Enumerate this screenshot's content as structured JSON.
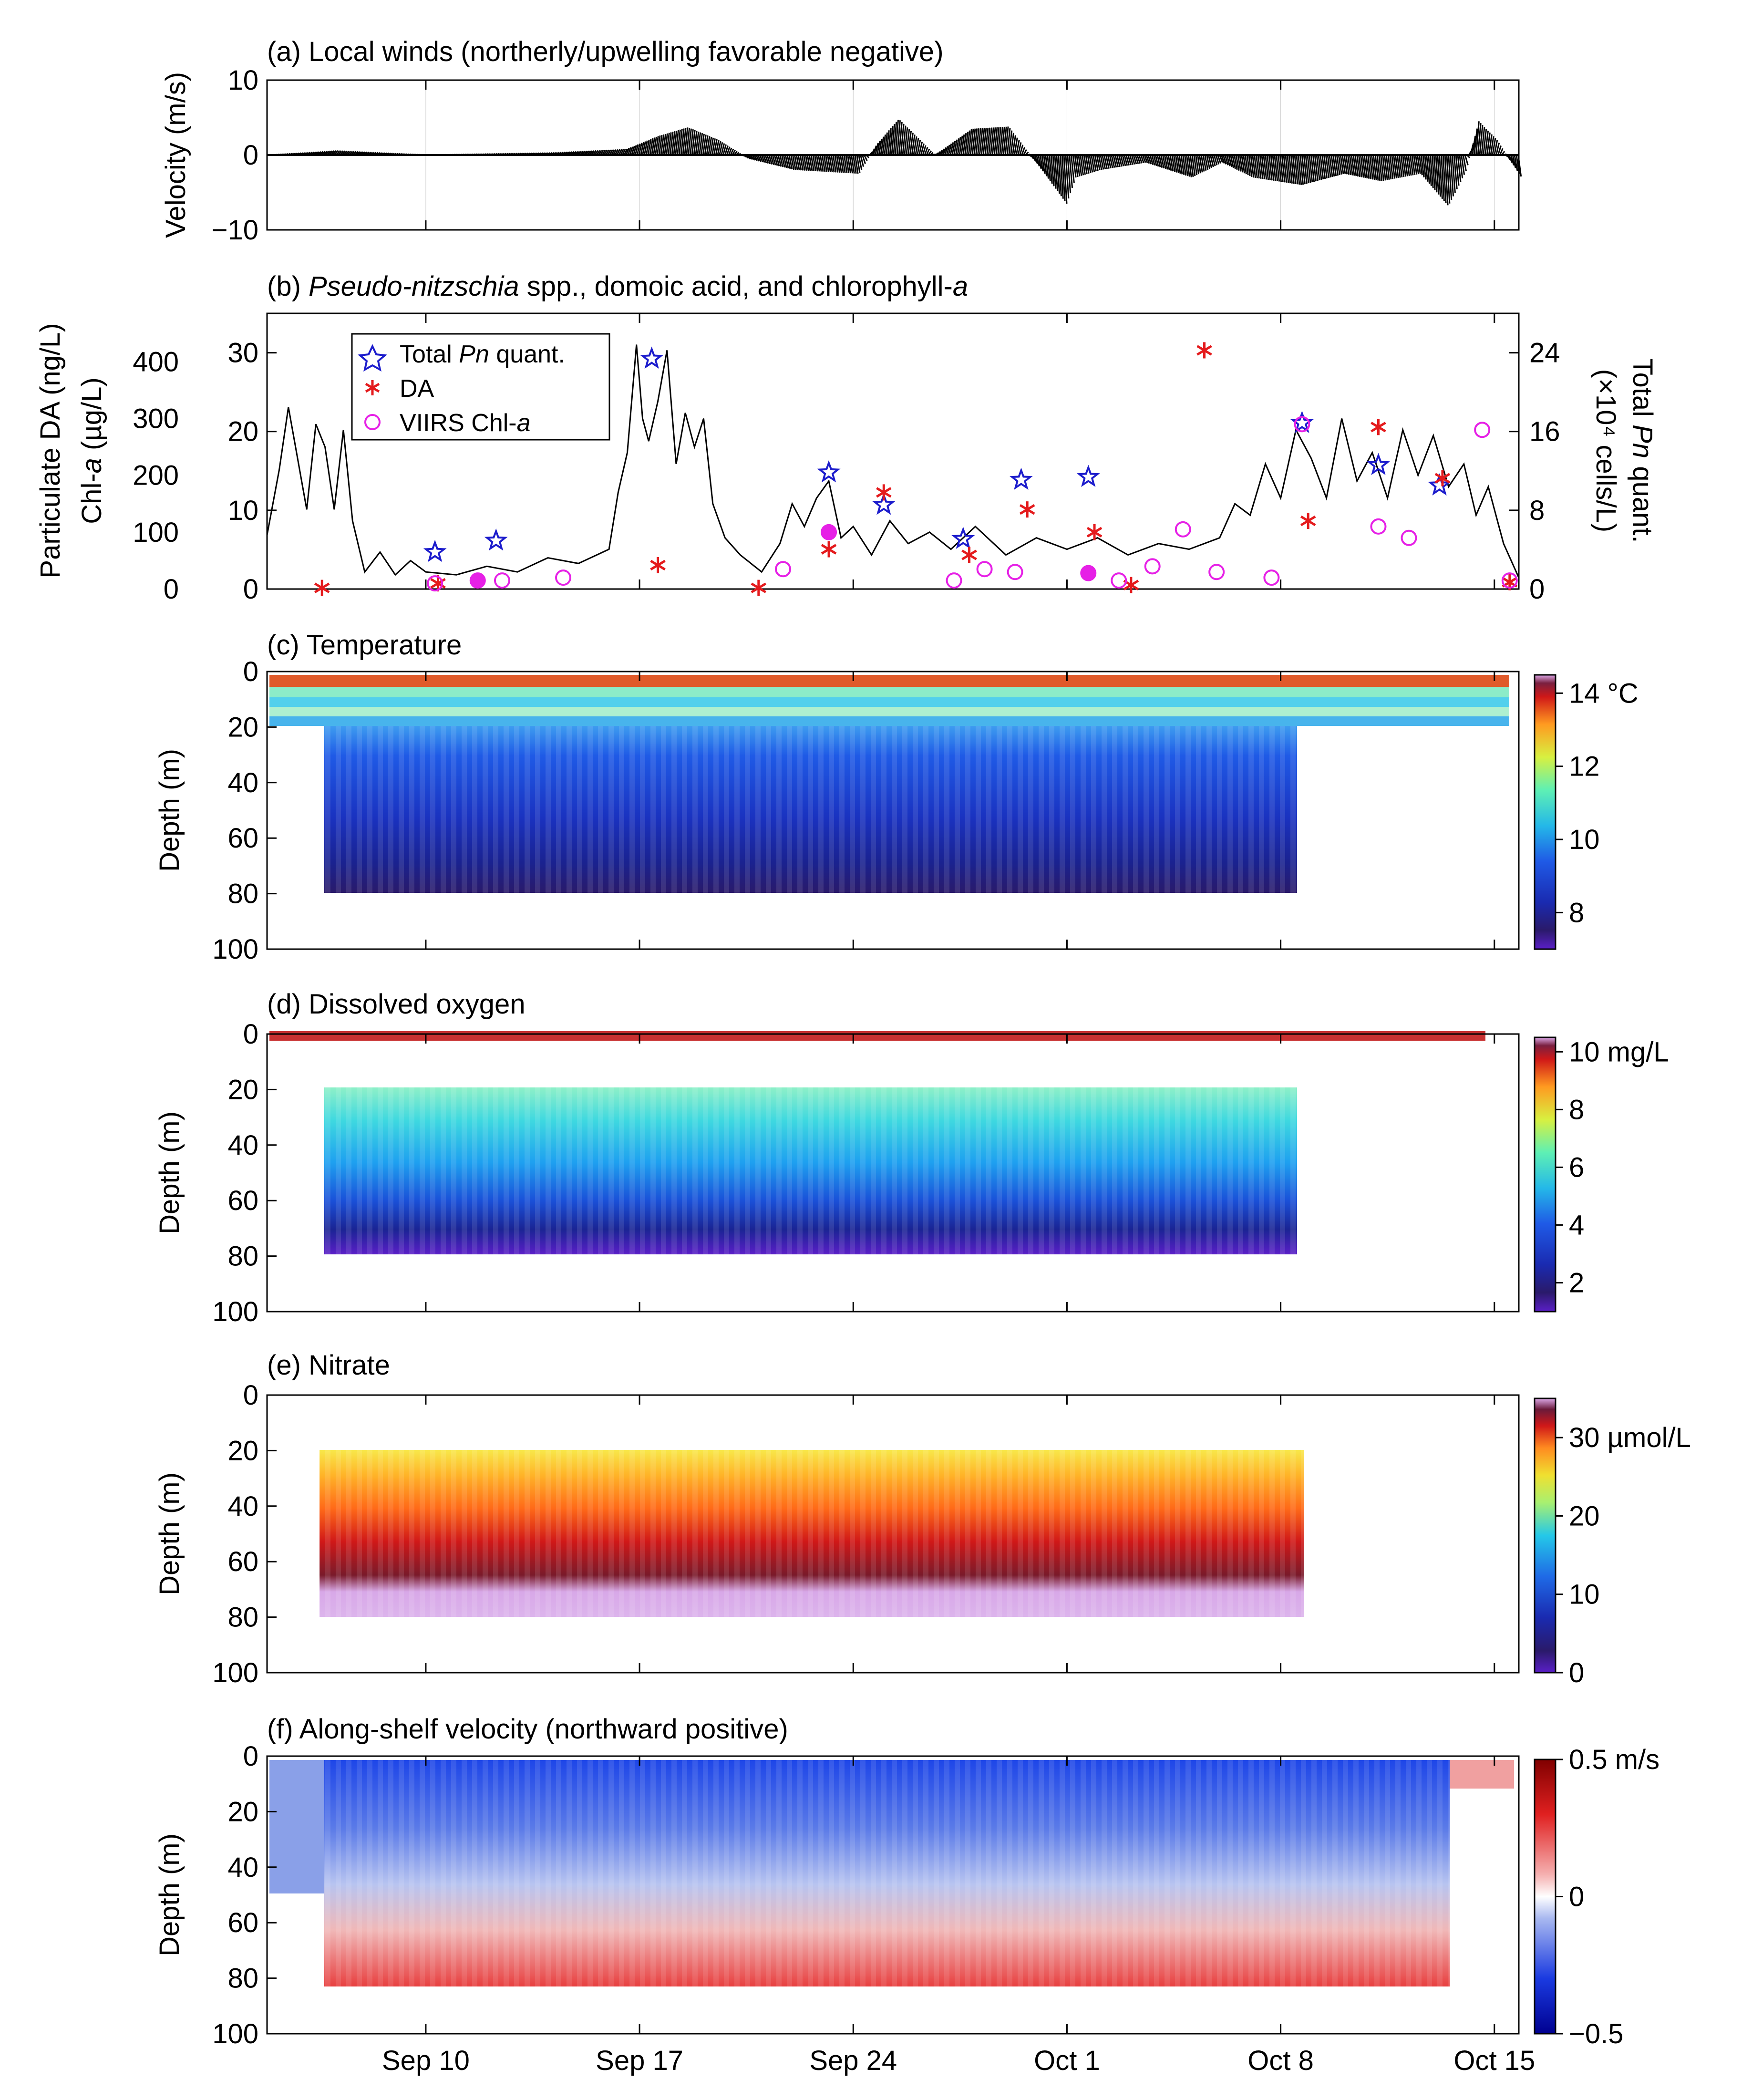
{
  "figure": {
    "x_ticks": [
      "Sep 10",
      "Sep 17",
      "Sep 24",
      "Oct 1",
      "Oct 8",
      "Oct 15"
    ],
    "x_tick_days": [
      10,
      17,
      24,
      31,
      38,
      45
    ],
    "x_range_days": [
      4.8,
      45.8
    ],
    "depth_axis_label": "Depth (m)",
    "depth_ticks": [
      "0",
      "20",
      "40",
      "60",
      "80",
      "100"
    ]
  },
  "chart_data": [
    {
      "id": "a",
      "type": "line",
      "title": "(a) Local winds (northerly/upwelling favorable negative)",
      "ylabel": "Velocity (m/s)",
      "ylim": [
        -10,
        10
      ],
      "yticks": [
        "10",
        "0",
        "−10"
      ],
      "yticks_values": [
        10,
        0,
        -10
      ],
      "x_unit": "day of Sep (Oct 1 = 31)",
      "series": [
        {
          "name": "wind stick",
          "x": [
            4.8,
            7,
            10,
            14,
            16.5,
            17.5,
            18.5,
            19.5,
            20.5,
            22,
            24.1,
            24.7,
            25.4,
            26.6,
            27.8,
            29,
            30,
            30.9,
            31.2,
            32,
            33.5,
            35,
            36,
            37,
            38.6,
            40,
            41.2,
            42.5,
            43.4,
            44,
            44.4,
            45,
            45.8
          ],
          "values": [
            0,
            0.6,
            0,
            0.3,
            0.8,
            2.5,
            3.7,
            2,
            -0.5,
            -2,
            -2.5,
            1.5,
            4.8,
            0,
            3.5,
            3.8,
            -1.5,
            -6.5,
            -3,
            -2,
            -1,
            -3,
            -1,
            -3,
            -4,
            -2.5,
            -3.5,
            -2.5,
            -6.8,
            -2,
            4.5,
            2,
            -3
          ]
        }
      ]
    },
    {
      "id": "b",
      "type": "scatter",
      "title_parts": [
        "(b) ",
        "Pseudo-nitzschia",
        " spp., domoic acid, and chlorophyll-",
        "a"
      ],
      "ylabel_left1": "Particulate DA (ng/L)",
      "ylabel_left2_parts": [
        "Chl-",
        "a",
        " (µg/L)"
      ],
      "ylabel_right_parts": [
        "Total ",
        "Pn",
        " quant."
      ],
      "ylabel_right_unit": "(×10⁴ cells/L)",
      "y_da_ticks": [
        "400",
        "300",
        "200",
        "100",
        "0"
      ],
      "y_chl_ticks": [
        "30",
        "20",
        "10",
        "0"
      ],
      "y_pn_ticks": [
        "24",
        "16",
        "8",
        "0"
      ],
      "y_da_range": [
        0,
        485
      ],
      "legend": [
        {
          "label_parts": [
            "Total ",
            "Pn",
            " quant."
          ],
          "marker": "star",
          "color": "#1c1ccc"
        },
        {
          "label_parts": [
            "DA"
          ],
          "marker": "asterisk",
          "color": "#e41a1c"
        },
        {
          "label_parts": [
            "VIIRS Chl-",
            "a"
          ],
          "marker": "circle",
          "color": "#e620e6"
        }
      ],
      "total_pn": {
        "x": [
          10.3,
          12.3,
          17.4,
          23.2,
          25,
          27.6,
          29.5,
          31.7,
          38.7,
          41.2,
          43.2
        ],
        "y_da_units": [
          65,
          85,
          405,
          205,
          148,
          88,
          192,
          197,
          292,
          218,
          182
        ]
      },
      "da": {
        "x": [
          6.6,
          10.4,
          17.6,
          20.9,
          23.2,
          25,
          27.8,
          29.7,
          31.9,
          33.1,
          35.5,
          38.9,
          41.2,
          43.3,
          45.5
        ],
        "y": [
          2,
          10,
          42,
          2,
          70,
          170,
          60,
          140,
          100,
          7,
          420,
          120,
          285,
          195,
          12
        ]
      },
      "viirs_chl": {
        "x": [
          10.3,
          11.7,
          12.5,
          14.5,
          21.7,
          23.2,
          27.3,
          28.3,
          29.3,
          31.7,
          32.7,
          33.8,
          34.8,
          35.9,
          37.7,
          38.7,
          41.2,
          42.2,
          44.6,
          45.5
        ],
        "y_da_units": [
          10,
          15,
          15,
          20,
          35,
          100,
          15,
          35,
          30,
          28,
          15,
          40,
          105,
          30,
          20,
          290,
          110,
          90,
          280,
          15
        ],
        "filled": [
          false,
          true,
          false,
          false,
          false,
          true,
          false,
          false,
          false,
          true,
          false,
          false,
          false,
          false,
          false,
          false,
          false,
          false,
          false,
          false
        ]
      },
      "chl_line": {
        "x": [
          4.8,
          5.2,
          5.5,
          5.8,
          6.1,
          6.4,
          6.7,
          7,
          7.3,
          7.6,
          8,
          8.5,
          9,
          9.5,
          10,
          11,
          12,
          13,
          14,
          15,
          16,
          16.3,
          16.6,
          16.9,
          17.1,
          17.3,
          17.6,
          17.9,
          18.2,
          18.5,
          18.8,
          19.1,
          19.4,
          19.8,
          20.3,
          21,
          21.6,
          22,
          22.4,
          22.8,
          23.2,
          23.6,
          24,
          24.6,
          25.2,
          25.8,
          26.5,
          27.2,
          28,
          29,
          30,
          31,
          32,
          33,
          34,
          35,
          36,
          36.5,
          37,
          37.5,
          38,
          38.5,
          39,
          39.5,
          40,
          40.5,
          41,
          41.5,
          42,
          42.5,
          43,
          43.5,
          44,
          44.4,
          44.8,
          45.3,
          45.8
        ],
        "values": [
          95,
          210,
          320,
          230,
          140,
          290,
          250,
          140,
          280,
          120,
          30,
          65,
          25,
          50,
          30,
          25,
          40,
          30,
          55,
          45,
          70,
          170,
          240,
          430,
          300,
          260,
          330,
          420,
          220,
          310,
          250,
          300,
          150,
          90,
          60,
          30,
          80,
          150,
          110,
          160,
          190,
          90,
          110,
          60,
          120,
          80,
          100,
          70,
          110,
          60,
          90,
          70,
          90,
          60,
          80,
          70,
          90,
          150,
          130,
          220,
          160,
          280,
          230,
          160,
          300,
          190,
          240,
          160,
          280,
          200,
          270,
          180,
          220,
          130,
          180,
          80,
          20
        ]
      }
    },
    {
      "id": "c",
      "type": "heatmap",
      "title": "(c) Temperature",
      "colorbar_ticks": [
        "14 °C",
        "12",
        "10",
        "8"
      ],
      "colorbar_tick_values": [
        14,
        12,
        10,
        8
      ],
      "colorbar_range": [
        7,
        14.5
      ]
    },
    {
      "id": "d",
      "type": "heatmap",
      "title": "(d) Dissolved oxygen",
      "colorbar_ticks": [
        "10 mg/L",
        "8",
        "6",
        "4",
        "2"
      ],
      "colorbar_tick_values": [
        10,
        8,
        6,
        4,
        2
      ],
      "colorbar_range": [
        1,
        10.5
      ]
    },
    {
      "id": "e",
      "type": "heatmap",
      "title": "(e) Nitrate",
      "colorbar_ticks": [
        "30 µmol/L",
        "20",
        "10",
        "0"
      ],
      "colorbar_tick_values": [
        30,
        20,
        10,
        0
      ],
      "colorbar_range": [
        0,
        35
      ]
    },
    {
      "id": "f",
      "type": "heatmap",
      "title": "(f) Along-shelf velocity (northward positive)",
      "colorbar_ticks": [
        "0.5 m/s",
        "0",
        "−0.5"
      ],
      "colorbar_tick_values": [
        0.5,
        0,
        -0.5
      ],
      "colorbar_range": [
        -0.5,
        0.5
      ]
    }
  ]
}
